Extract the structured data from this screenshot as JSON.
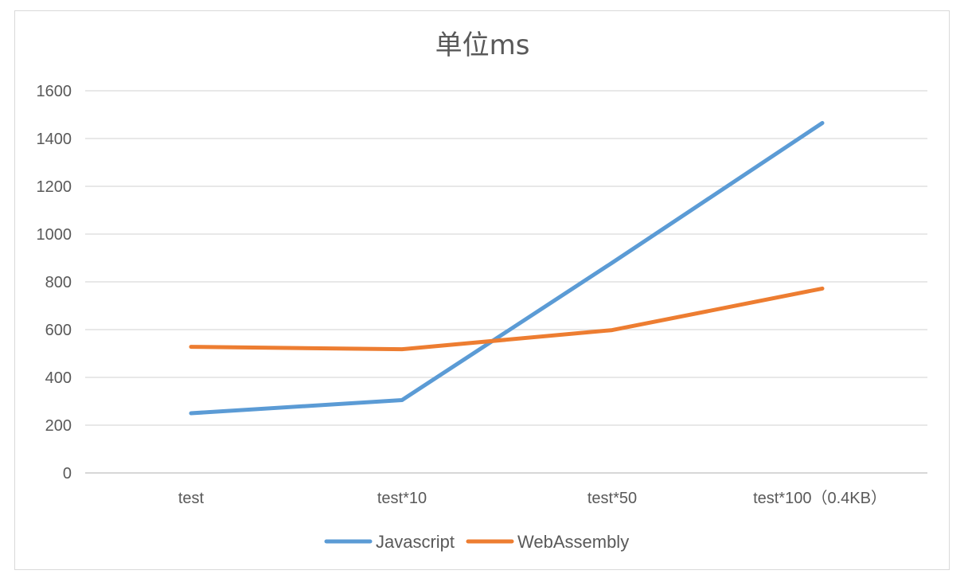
{
  "chart_data": {
    "type": "line",
    "title": "单位ms",
    "categories": [
      "test",
      "test*10",
      "test*50",
      "test*100（0.4KB）"
    ],
    "ylim": [
      0,
      1600
    ],
    "yticks": [
      0,
      200,
      400,
      600,
      800,
      1000,
      1200,
      1400,
      1600
    ],
    "grid": true,
    "legend_position": "bottom",
    "series": [
      {
        "name": "Javascript",
        "color": "#5b9bd5",
        "values": [
          250,
          305,
          880,
          1465
        ]
      },
      {
        "name": "WebAssembly",
        "color": "#ed7d31",
        "values": [
          528,
          518,
          598,
          772
        ]
      }
    ]
  }
}
